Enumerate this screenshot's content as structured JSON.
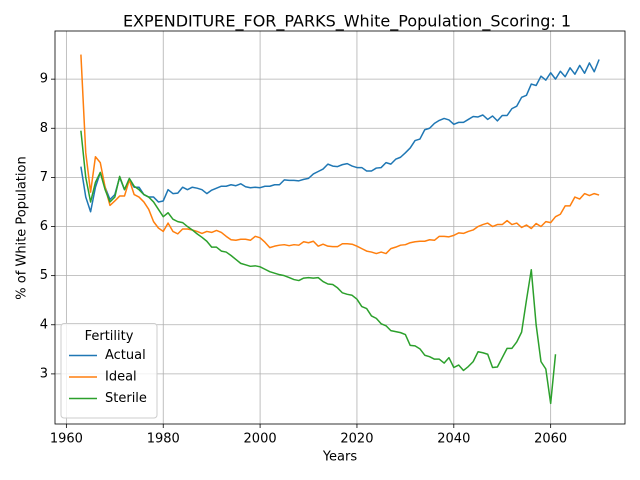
{
  "chart_data": {
    "type": "line",
    "title": "EXPENDITURE_FOR_PARKS_White_Population_Scoring: 1",
    "x_label": "Years",
    "y_label": "% of White Population",
    "legend_title": "Fertility",
    "legend_position": "lower left",
    "grid": true,
    "x": [
      1963,
      1964,
      1965,
      1966,
      1967,
      1968,
      1969,
      1970,
      1971,
      1972,
      1973,
      1974,
      1975,
      1976,
      1977,
      1978,
      1979,
      1980,
      1981,
      1982,
      1983,
      1984,
      1985,
      1986,
      1987,
      1988,
      1989,
      1990,
      1991,
      1992,
      1993,
      1994,
      1995,
      1996,
      1997,
      1998,
      1999,
      2000,
      2001,
      2002,
      2003,
      2004,
      2005,
      2006,
      2007,
      2008,
      2009,
      2010,
      2011,
      2012,
      2013,
      2014,
      2015,
      2016,
      2017,
      2018,
      2019,
      2020,
      2021,
      2022,
      2023,
      2024,
      2025,
      2026,
      2027,
      2028,
      2029,
      2030,
      2031,
      2032,
      2033,
      2034,
      2035,
      2036,
      2037,
      2038,
      2039,
      2040,
      2041,
      2042,
      2043,
      2044,
      2045,
      2046,
      2047,
      2048,
      2049,
      2050,
      2051,
      2052,
      2053,
      2054,
      2055,
      2056,
      2057,
      2058,
      2059,
      2060,
      2061,
      2062,
      2063,
      2064,
      2065,
      2066,
      2067,
      2068,
      2069,
      2070
    ],
    "series": [
      {
        "name": "Actual",
        "color": "#1f77b4",
        "values": [
          7.22,
          6.6,
          6.3,
          6.8,
          7.1,
          6.8,
          6.55,
          6.65,
          7.0,
          6.75,
          6.95,
          6.8,
          6.8,
          6.65,
          6.6,
          6.6,
          6.5,
          6.52,
          6.75,
          6.67,
          6.68,
          6.8,
          6.75,
          6.8,
          6.78,
          6.75,
          6.67,
          6.74,
          6.78,
          6.82,
          6.82,
          6.85,
          6.83,
          6.87,
          6.81,
          6.79,
          6.8,
          6.79,
          6.82,
          6.82,
          6.85,
          6.85,
          6.95,
          6.94,
          6.94,
          6.93,
          6.96,
          6.98,
          7.07,
          7.12,
          7.17,
          7.27,
          7.23,
          7.22,
          7.26,
          7.28,
          7.23,
          7.2,
          7.2,
          7.13,
          7.13,
          7.19,
          7.2,
          7.3,
          7.27,
          7.37,
          7.41,
          7.5,
          7.6,
          7.75,
          7.78,
          7.97,
          8.0,
          8.1,
          8.16,
          8.2,
          8.17,
          8.08,
          8.12,
          8.12,
          8.18,
          8.24,
          8.23,
          8.27,
          8.18,
          8.25,
          8.15,
          8.26,
          8.26,
          8.4,
          8.45,
          8.63,
          8.67,
          8.9,
          8.87,
          9.06,
          8.98,
          9.13,
          9.0,
          9.16,
          9.05,
          9.23,
          9.1,
          9.28,
          9.12,
          9.33,
          9.15,
          9.4
        ]
      },
      {
        "name": "Ideal",
        "color": "#ff7f0e",
        "values": [
          9.5,
          7.5,
          6.7,
          7.42,
          7.3,
          6.8,
          6.43,
          6.52,
          6.62,
          6.62,
          6.95,
          6.65,
          6.6,
          6.5,
          6.35,
          6.1,
          5.97,
          5.9,
          6.07,
          5.9,
          5.85,
          5.95,
          5.95,
          5.93,
          5.9,
          5.86,
          5.9,
          5.88,
          5.92,
          5.88,
          5.8,
          5.73,
          5.72,
          5.74,
          5.74,
          5.72,
          5.8,
          5.77,
          5.68,
          5.57,
          5.6,
          5.62,
          5.63,
          5.61,
          5.63,
          5.62,
          5.69,
          5.67,
          5.7,
          5.6,
          5.64,
          5.6,
          5.59,
          5.59,
          5.65,
          5.65,
          5.64,
          5.6,
          5.55,
          5.5,
          5.48,
          5.45,
          5.48,
          5.45,
          5.55,
          5.58,
          5.62,
          5.63,
          5.67,
          5.69,
          5.7,
          5.7,
          5.73,
          5.72,
          5.8,
          5.8,
          5.79,
          5.82,
          5.87,
          5.86,
          5.9,
          5.93,
          6.0,
          6.04,
          6.07,
          6.0,
          6.04,
          6.04,
          6.12,
          6.04,
          6.07,
          5.98,
          6.03,
          5.96,
          6.06,
          6.0,
          6.1,
          6.08,
          6.2,
          6.25,
          6.42,
          6.42,
          6.6,
          6.56,
          6.67,
          6.63,
          6.67,
          6.64
        ]
      },
      {
        "name": "Sterile",
        "color": "#2ca02c",
        "values": [
          7.95,
          7.0,
          6.5,
          6.9,
          7.1,
          6.75,
          6.5,
          6.6,
          7.02,
          6.75,
          6.98,
          6.82,
          6.75,
          6.65,
          6.6,
          6.5,
          6.35,
          6.2,
          6.28,
          6.15,
          6.1,
          6.08,
          6.0,
          5.93,
          5.85,
          5.78,
          5.7,
          5.58,
          5.58,
          5.5,
          5.48,
          5.41,
          5.33,
          5.25,
          5.22,
          5.19,
          5.2,
          5.18,
          5.13,
          5.08,
          5.05,
          5.02,
          5.0,
          4.96,
          4.92,
          4.9,
          4.95,
          4.96,
          4.95,
          4.96,
          4.88,
          4.83,
          4.82,
          4.75,
          4.65,
          4.62,
          4.6,
          4.52,
          4.37,
          4.33,
          4.18,
          4.13,
          4.02,
          3.98,
          3.88,
          3.86,
          3.84,
          3.8,
          3.58,
          3.57,
          3.51,
          3.38,
          3.35,
          3.3,
          3.3,
          3.22,
          3.33,
          3.13,
          3.18,
          3.07,
          3.15,
          3.25,
          3.45,
          3.43,
          3.4,
          3.13,
          3.14,
          3.33,
          3.52,
          3.52,
          3.65,
          3.85,
          4.5,
          5.12,
          4.0,
          3.25,
          3.1,
          2.4,
          3.4,
          null,
          null,
          null,
          null,
          null,
          null,
          null,
          null,
          null
        ]
      }
    ],
    "xlim": [
      1957.65,
      2075.35
    ],
    "ylim": [
      1.98,
      9.98
    ],
    "xticks": [
      1960,
      1980,
      2000,
      2020,
      2040,
      2060
    ],
    "yticks": [
      3,
      4,
      5,
      6,
      7,
      8,
      9
    ]
  }
}
